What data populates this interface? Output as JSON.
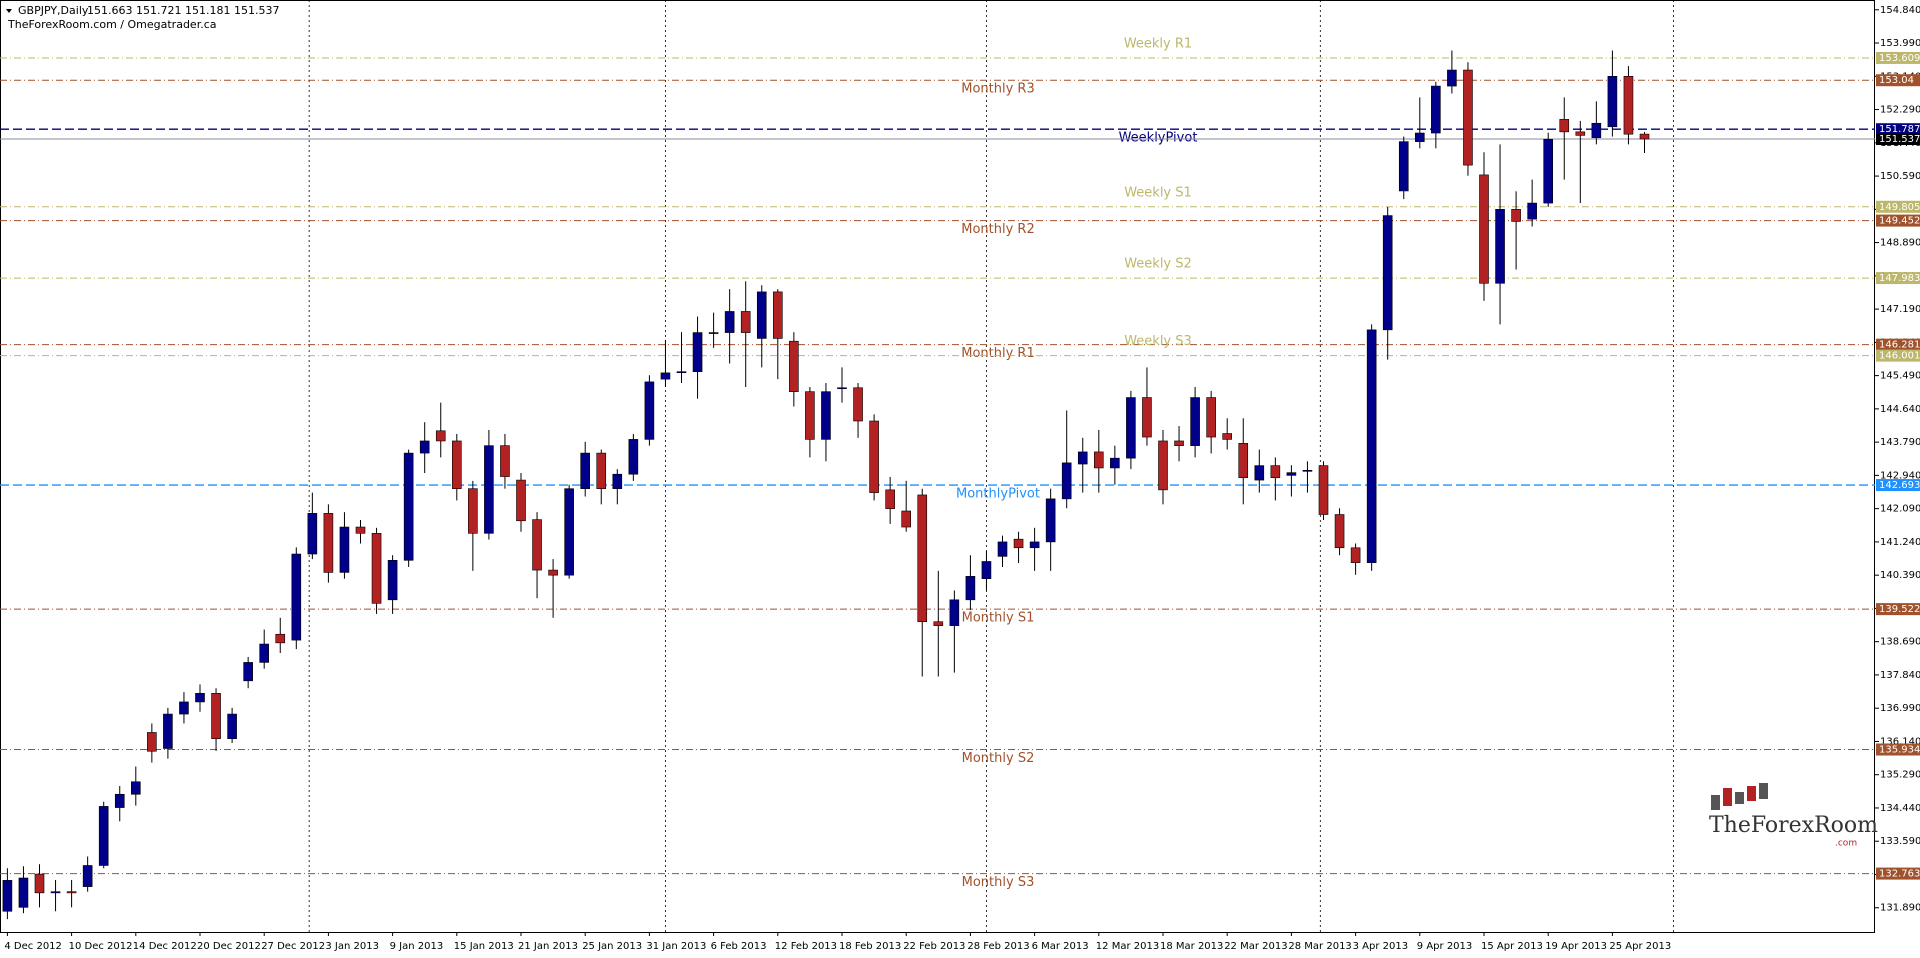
{
  "chart_data": {
    "type": "candlestick",
    "symbol": "GBPJPY,Daily",
    "source": "TheForexRoom.com / Omegatrader.ca",
    "categories": [
      "4 Dec 2012",
      null,
      null,
      null,
      "10 Dec 2012",
      null,
      null,
      null,
      "14 Dec 2012",
      null,
      null,
      null,
      "20 Dec 2012",
      null,
      null,
      null,
      "27 Dec 2012",
      null,
      null,
      null,
      "3 Jan 2013",
      null,
      null,
      null,
      "9 Jan 2013",
      null,
      null,
      null,
      "15 Jan 2013",
      null,
      null,
      null,
      "21 Jan 2013",
      null,
      null,
      null,
      "25 Jan 2013",
      null,
      null,
      null,
      "31 Jan 2013",
      null,
      null,
      null,
      "6 Feb 2013",
      null,
      null,
      null,
      "12 Feb 2013",
      null,
      null,
      null,
      "18 Feb 2013",
      null,
      null,
      null,
      "22 Feb 2013",
      null,
      null,
      null,
      "28 Feb 2013",
      null,
      null,
      null,
      "6 Mar 2013",
      null,
      null,
      null,
      "12 Mar 2013",
      null,
      null,
      null,
      "18 Mar 2013",
      null,
      null,
      null,
      "22 Mar 2013",
      null,
      null,
      null,
      "28 Mar 2013",
      null,
      null,
      null,
      "3 Apr 2013",
      null,
      null,
      null,
      "9 Apr 2013",
      null,
      null,
      null,
      "15 Apr 2013",
      null,
      null,
      null,
      "19 Apr 2013",
      null,
      null,
      null,
      "25 Apr 2013",
      null,
      null
    ],
    "open": [
      131.8,
      131.9,
      132.75,
      132.27,
      132.3,
      132.43,
      132.97,
      134.45,
      134.79,
      136.37,
      135.96,
      136.84,
      137.15,
      137.37,
      136.21,
      137.69,
      138.16,
      138.88,
      138.73,
      140.93,
      141.97,
      140.46,
      141.62,
      141.46,
      139.76,
      140.77,
      143.51,
      144.08,
      143.82,
      142.6,
      141.46,
      143.7,
      142.82,
      141.81,
      140.52,
      140.39,
      142.6,
      143.51,
      142.6,
      142.97,
      143.86,
      145.4,
      145.59,
      145.59,
      146.59,
      146.59,
      147.13,
      146.44,
      147.63,
      146.37,
      145.08,
      143.86,
      145.18,
      145.18,
      144.33,
      142.57,
      142.03,
      142.44,
      139.2,
      139.1,
      139.76,
      140.3,
      140.87,
      141.31,
      141.09,
      141.24,
      142.34,
      143.23,
      143.54,
      143.13,
      143.38,
      144.93,
      143.82,
      143.82,
      143.7,
      144.93,
      144.01,
      143.76,
      142.82,
      143.19,
      142.94,
      143.07,
      143.19,
      141.94,
      141.09,
      140.71,
      146.66,
      150.21,
      151.47,
      151.69,
      152.89,
      153.3,
      150.62,
      147.85,
      149.74,
      149.49,
      149.9,
      152.04,
      151.72,
      151.57,
      151.85,
      153.14,
      151.663
    ],
    "high": [
      132.9,
      132.95,
      133.0,
      132.6,
      132.6,
      133.2,
      134.6,
      135.0,
      135.5,
      136.6,
      137.0,
      137.4,
      137.6,
      137.5,
      137.0,
      138.3,
      139.0,
      139.3,
      141.1,
      142.5,
      142.2,
      142.0,
      141.8,
      141.6,
      140.9,
      143.6,
      144.3,
      144.8,
      144.0,
      142.8,
      144.1,
      144.0,
      143.0,
      142.0,
      140.8,
      142.7,
      143.8,
      143.6,
      143.1,
      144.0,
      145.5,
      146.4,
      146.6,
      147.0,
      147.1,
      147.7,
      147.9,
      147.8,
      147.7,
      146.6,
      145.2,
      145.3,
      145.7,
      145.3,
      144.5,
      142.9,
      142.8,
      142.6,
      140.5,
      140.0,
      140.9,
      141.0,
      141.4,
      141.5,
      141.6,
      142.6,
      144.6,
      143.9,
      144.1,
      143.7,
      145.1,
      145.7,
      144.1,
      144.2,
      145.2,
      145.1,
      144.4,
      144.4,
      143.6,
      143.4,
      143.2,
      143.3,
      143.3,
      142.1,
      141.2,
      146.8,
      149.8,
      151.6,
      152.6,
      153.0,
      153.8,
      153.5,
      151.2,
      151.4,
      150.2,
      150.5,
      151.7,
      152.6,
      152.0,
      152.5,
      153.8,
      153.4,
      151.721
    ],
    "low": [
      131.6,
      131.75,
      131.9,
      131.8,
      131.9,
      132.3,
      132.9,
      134.1,
      134.5,
      135.6,
      135.7,
      136.6,
      136.9,
      135.9,
      136.1,
      137.5,
      138.0,
      138.4,
      138.5,
      140.8,
      140.2,
      140.3,
      141.2,
      139.4,
      139.4,
      140.6,
      143.0,
      143.4,
      142.3,
      140.5,
      141.3,
      142.6,
      141.5,
      139.8,
      139.3,
      140.3,
      142.4,
      142.2,
      142.2,
      142.8,
      143.7,
      145.2,
      145.3,
      144.9,
      146.2,
      145.8,
      145.2,
      145.7,
      145.4,
      144.7,
      143.4,
      143.3,
      144.8,
      143.9,
      142.3,
      141.7,
      141.5,
      137.8,
      137.8,
      137.9,
      139.5,
      140.0,
      140.6,
      140.7,
      140.5,
      140.5,
      142.1,
      142.5,
      142.5,
      142.7,
      143.1,
      143.7,
      142.2,
      143.3,
      143.4,
      143.5,
      143.6,
      142.2,
      142.5,
      142.3,
      142.4,
      142.5,
      141.8,
      140.9,
      140.4,
      140.5,
      145.9,
      150.0,
      151.3,
      151.3,
      152.7,
      150.6,
      147.4,
      146.8,
      148.2,
      149.3,
      149.8,
      150.5,
      149.9,
      151.4,
      151.6,
      151.4,
      151.181
    ],
    "close": [
      132.59,
      132.65,
      132.27,
      132.3,
      132.27,
      132.97,
      134.48,
      134.79,
      135.11,
      135.89,
      136.84,
      137.15,
      137.37,
      136.21,
      136.84,
      138.16,
      138.63,
      138.66,
      140.93,
      141.97,
      140.46,
      141.62,
      141.46,
      139.67,
      140.77,
      143.51,
      143.82,
      143.82,
      142.6,
      141.46,
      143.7,
      142.91,
      141.78,
      140.52,
      140.39,
      142.6,
      143.51,
      142.6,
      142.97,
      143.86,
      145.33,
      145.56,
      145.59,
      146.59,
      146.59,
      147.13,
      146.59,
      147.63,
      146.44,
      145.08,
      143.86,
      145.08,
      145.18,
      144.33,
      142.5,
      142.09,
      141.62,
      139.2,
      139.1,
      139.76,
      140.36,
      140.74,
      141.24,
      141.09,
      141.24,
      142.34,
      143.26,
      143.54,
      143.13,
      143.38,
      144.93,
      143.92,
      142.57,
      143.7,
      144.93,
      143.92,
      143.86,
      142.88,
      143.19,
      142.88,
      143.01,
      143.07,
      141.94,
      141.09,
      140.71,
      146.66,
      149.58,
      151.47,
      151.69,
      152.89,
      153.3,
      150.87,
      147.85,
      149.74,
      149.43,
      149.9,
      151.53,
      151.72,
      151.63,
      151.94,
      153.14,
      151.66,
      151.537
    ],
    "colors": {
      "up": "#00008b",
      "down": "#b22222",
      "wick": "#000000"
    },
    "ylim": [
      131.27,
      155.09
    ],
    "yticks": [
      {
        "value": 154.84,
        "label": "154.840"
      },
      {
        "value": 153.99,
        "label": "153.990"
      },
      {
        "value": 153.14,
        "label": "153.140"
      },
      {
        "value": 152.29,
        "label": "152.290"
      },
      {
        "value": 151.44,
        "label": "151.440"
      },
      {
        "value": 150.59,
        "label": "150.590"
      },
      {
        "value": 149.74,
        "label": "149.740"
      },
      {
        "value": 148.89,
        "label": "148.890"
      },
      {
        "value": 148.04,
        "label": "148.040"
      },
      {
        "value": 147.19,
        "label": "147.190"
      },
      {
        "value": 146.34,
        "label": "146.340"
      },
      {
        "value": 145.49,
        "label": "145.490"
      },
      {
        "value": 144.64,
        "label": "144.640"
      },
      {
        "value": 143.79,
        "label": "143.790"
      },
      {
        "value": 142.94,
        "label": "142.940"
      },
      {
        "value": 142.09,
        "label": "142.090"
      },
      {
        "value": 141.24,
        "label": "141.240"
      },
      {
        "value": 140.39,
        "label": "140.390"
      },
      {
        "value": 139.54,
        "label": "139.540"
      },
      {
        "value": 138.69,
        "label": "138.690"
      },
      {
        "value": 137.84,
        "label": "137.840"
      },
      {
        "value": 136.99,
        "label": "136.990"
      },
      {
        "value": 136.14,
        "label": "136.140"
      },
      {
        "value": 135.29,
        "label": "135.290"
      },
      {
        "value": 134.44,
        "label": "134.440"
      },
      {
        "value": 133.59,
        "label": "133.590"
      },
      {
        "value": 132.74,
        "label": "132.740"
      },
      {
        "value": 131.89,
        "label": "131.890"
      }
    ],
    "levels": [
      {
        "name": "Weekly R1",
        "value": 153.609,
        "color": "#bdb76b",
        "style": "dashdot",
        "group": "weekly"
      },
      {
        "name": "Monthly R3",
        "value": 153.04,
        "color": "#a0522d",
        "style": "dashdot",
        "group": "monthly"
      },
      {
        "name": "WeeklyPivot",
        "value": 151.787,
        "color": "#000080",
        "style": "dash",
        "group": "weekly"
      },
      {
        "name": "Weekly S1",
        "value": 149.805,
        "color": "#bdb76b",
        "style": "dashdot",
        "group": "weekly"
      },
      {
        "name": "Monthly R2",
        "value": 149.452,
        "color": "#a0522d",
        "style": "dashdot",
        "group": "monthly"
      },
      {
        "name": "Weekly S2",
        "value": 147.983,
        "color": "#bdb76b",
        "style": "dashdot",
        "group": "weekly"
      },
      {
        "name": "Monthly R1",
        "value": 146.281,
        "color": "#a0522d",
        "style": "dashdot",
        "group": "monthly"
      },
      {
        "name": "Weekly S3",
        "value": 146.001,
        "color": "#bdb76b",
        "style": "dashdot",
        "group": "weekly"
      },
      {
        "name": "MonthlyPivot",
        "value": 142.693,
        "color": "#1e90ff",
        "style": "dash",
        "group": "monthly"
      },
      {
        "name": "Monthly S1",
        "value": 139.522,
        "color": "#a0522d",
        "style": "dashdot",
        "group": "monthly"
      },
      {
        "name": "Monthly S2",
        "value": 135.934,
        "color": "#a0522d",
        "style": "dashdot",
        "group": "monthly"
      },
      {
        "name": "Monthly S3",
        "value": 132.763,
        "color": "#a0522d",
        "style": "dashdot",
        "group": "monthly"
      }
    ],
    "logo": "TheForexRoom",
    "logo_sub": ".com"
  }
}
